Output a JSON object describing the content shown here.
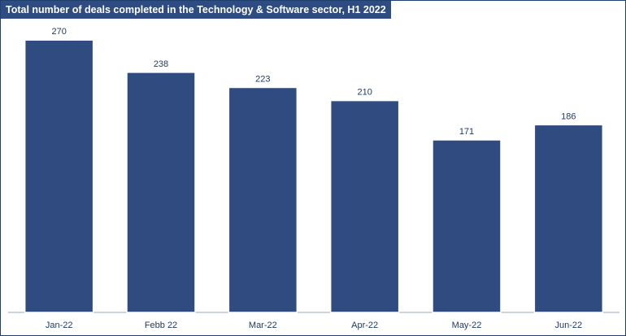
{
  "chart_data": {
    "type": "bar",
    "title": "Total number of deals completed in the Technology & Software sector, H1 2022",
    "categories": [
      "Jan-22",
      "Febb 22",
      "Mar-22",
      "Apr-22",
      "May-22",
      "Jun-22"
    ],
    "values": [
      270,
      238,
      223,
      210,
      171,
      186
    ],
    "xlabel": "",
    "ylabel": "",
    "ylim": [
      0,
      300
    ],
    "grid": false,
    "legend": "none",
    "colors": {
      "bar": "#2f4b80",
      "title_bg": "#2e4b82",
      "title_text": "#ffffff",
      "label": "#1f3a66"
    }
  }
}
